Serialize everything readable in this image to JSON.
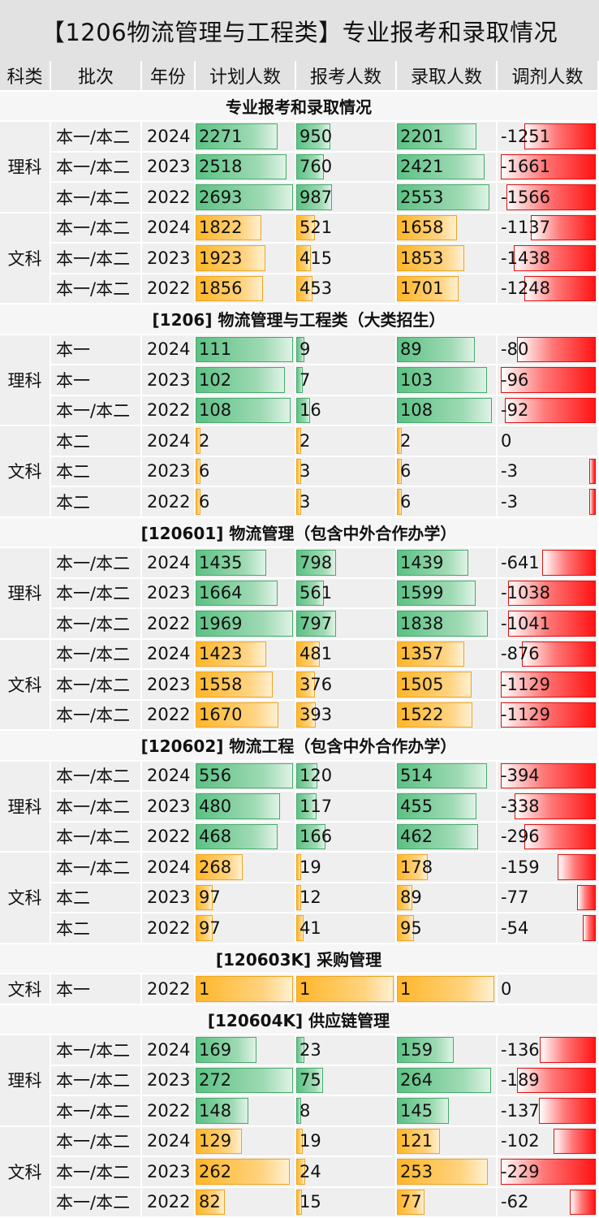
{
  "chart_data": {
    "type": "table",
    "title": "【1206物流管理与工程类】专业报考和录取情况",
    "columns": [
      "科类",
      "批次",
      "年份",
      "计划人数",
      "报考人数",
      "录取人数",
      "调剂人数"
    ],
    "sections": [
      {
        "title": "专业报考和录取情况",
        "groups": [
          {
            "subject": "理科",
            "rows": [
              {
                "batch": "本一/本二",
                "year": "2024",
                "plan": 2271,
                "apply": 950,
                "admit": 2201,
                "adjust": -1251
              },
              {
                "batch": "本一/本二",
                "year": "2023",
                "plan": 2518,
                "apply": 760,
                "admit": 2421,
                "adjust": -1661
              },
              {
                "batch": "本一/本二",
                "year": "2022",
                "plan": 2693,
                "apply": 987,
                "admit": 2553,
                "adjust": -1566
              }
            ]
          },
          {
            "subject": "文科",
            "rows": [
              {
                "batch": "本一/本二",
                "year": "2024",
                "plan": 1822,
                "apply": 521,
                "admit": 1658,
                "adjust": -1137
              },
              {
                "batch": "本一/本二",
                "year": "2023",
                "plan": 1923,
                "apply": 415,
                "admit": 1853,
                "adjust": -1438
              },
              {
                "batch": "本一/本二",
                "year": "2022",
                "plan": 1856,
                "apply": 453,
                "admit": 1701,
                "adjust": -1248
              }
            ]
          }
        ]
      },
      {
        "title": "[1206] 物流管理与工程类（大类招生）",
        "groups": [
          {
            "subject": "理科",
            "rows": [
              {
                "batch": "本一",
                "year": "2024",
                "plan": 111,
                "apply": 9,
                "admit": 89,
                "adjust": -80
              },
              {
                "batch": "本一",
                "year": "2023",
                "plan": 102,
                "apply": 7,
                "admit": 103,
                "adjust": -96
              },
              {
                "batch": "本一/本二",
                "year": "2022",
                "plan": 108,
                "apply": 16,
                "admit": 108,
                "adjust": -92
              }
            ]
          },
          {
            "subject": "文科",
            "rows": [
              {
                "batch": "本二",
                "year": "2024",
                "plan": 2,
                "apply": 2,
                "admit": 2,
                "adjust": 0
              },
              {
                "batch": "本二",
                "year": "2023",
                "plan": 6,
                "apply": 3,
                "admit": 6,
                "adjust": -3
              },
              {
                "batch": "本二",
                "year": "2022",
                "plan": 6,
                "apply": 3,
                "admit": 6,
                "adjust": -3
              }
            ]
          }
        ]
      },
      {
        "title": "[120601] 物流管理（包含中外合作办学）",
        "groups": [
          {
            "subject": "理科",
            "rows": [
              {
                "batch": "本一/本二",
                "year": "2024",
                "plan": 1435,
                "apply": 798,
                "admit": 1439,
                "adjust": -641
              },
              {
                "batch": "本一/本二",
                "year": "2023",
                "plan": 1664,
                "apply": 561,
                "admit": 1599,
                "adjust": -1038
              },
              {
                "batch": "本一/本二",
                "year": "2022",
                "plan": 1969,
                "apply": 797,
                "admit": 1838,
                "adjust": -1041
              }
            ]
          },
          {
            "subject": "文科",
            "rows": [
              {
                "batch": "本一/本二",
                "year": "2024",
                "plan": 1423,
                "apply": 481,
                "admit": 1357,
                "adjust": -876
              },
              {
                "batch": "本一/本二",
                "year": "2023",
                "plan": 1558,
                "apply": 376,
                "admit": 1505,
                "adjust": -1129
              },
              {
                "batch": "本一/本二",
                "year": "2022",
                "plan": 1670,
                "apply": 393,
                "admit": 1522,
                "adjust": -1129
              }
            ]
          }
        ]
      },
      {
        "title": "[120602] 物流工程（包含中外合作办学）",
        "groups": [
          {
            "subject": "理科",
            "rows": [
              {
                "batch": "本一/本二",
                "year": "2024",
                "plan": 556,
                "apply": 120,
                "admit": 514,
                "adjust": -394
              },
              {
                "batch": "本一/本二",
                "year": "2023",
                "plan": 480,
                "apply": 117,
                "admit": 455,
                "adjust": -338
              },
              {
                "batch": "本一/本二",
                "year": "2022",
                "plan": 468,
                "apply": 166,
                "admit": 462,
                "adjust": -296
              }
            ]
          },
          {
            "subject": "文科",
            "rows": [
              {
                "batch": "本一/本二",
                "year": "2024",
                "plan": 268,
                "apply": 19,
                "admit": 178,
                "adjust": -159
              },
              {
                "batch": "本二",
                "year": "2023",
                "plan": 97,
                "apply": 12,
                "admit": 89,
                "adjust": -77
              },
              {
                "batch": "本二",
                "year": "2022",
                "plan": 97,
                "apply": 41,
                "admit": 95,
                "adjust": -54
              }
            ]
          }
        ]
      },
      {
        "title": "[120603K] 采购管理",
        "groups": [
          {
            "subject": "文科",
            "rows": [
              {
                "batch": "本一",
                "year": "2022",
                "plan": 1,
                "apply": 1,
                "admit": 1,
                "adjust": 0
              }
            ]
          }
        ]
      },
      {
        "title": "[120604K] 供应链管理",
        "groups": [
          {
            "subject": "理科",
            "rows": [
              {
                "batch": "本一/本二",
                "year": "2024",
                "plan": 169,
                "apply": 23,
                "admit": 159,
                "adjust": -136
              },
              {
                "batch": "本一/本二",
                "year": "2023",
                "plan": 272,
                "apply": 75,
                "admit": 264,
                "adjust": -189
              },
              {
                "batch": "本一/本二",
                "year": "2022",
                "plan": 148,
                "apply": 8,
                "admit": 145,
                "adjust": -137
              }
            ]
          },
          {
            "subject": "文科",
            "rows": [
              {
                "batch": "本一/本二",
                "year": "2024",
                "plan": 129,
                "apply": 19,
                "admit": 121,
                "adjust": -102
              },
              {
                "batch": "本一/本二",
                "year": "2023",
                "plan": 262,
                "apply": 24,
                "admit": 253,
                "adjust": -229
              },
              {
                "batch": "本一/本二",
                "year": "2022",
                "plan": 82,
                "apply": 15,
                "admit": 77,
                "adjust": -62
              }
            ]
          }
        ]
      }
    ],
    "colors": {
      "science_bar": "#5cc184",
      "liberal_bar": "#ffb629",
      "adjust_bar": "#ff1414",
      "header_bg": "#e2e2e2",
      "cell_bg": "#efefef"
    }
  }
}
